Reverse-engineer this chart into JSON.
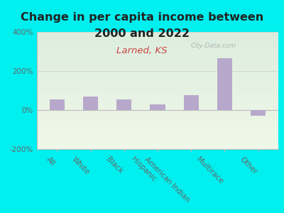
{
  "title_line1": "Change in per capita income between",
  "title_line2": "2000 and 2022",
  "subtitle": "Larned, KS",
  "categories": [
    "All",
    "White",
    "Black",
    "Hispanic",
    "American Indian",
    "Multirace",
    "Other"
  ],
  "values": [
    55,
    68,
    55,
    28,
    75,
    265,
    -30
  ],
  "bar_color": "#b8a8cc",
  "background_outer": "#00efef",
  "background_inner_colors": [
    "#f0f5e8",
    "#ddeedd"
  ],
  "ylim": [
    -200,
    400
  ],
  "yticks": [
    -200,
    0,
    200,
    400
  ],
  "ytick_labels": [
    "-200%",
    "0%",
    "200%",
    "400%"
  ],
  "title_fontsize": 11.5,
  "subtitle_fontsize": 9.5,
  "subtitle_color": "#cc4444",
  "title_color": "#222222",
  "watermark": "City-Data.com",
  "tick_color": "#666666",
  "axis_color": "#bbbbbb"
}
